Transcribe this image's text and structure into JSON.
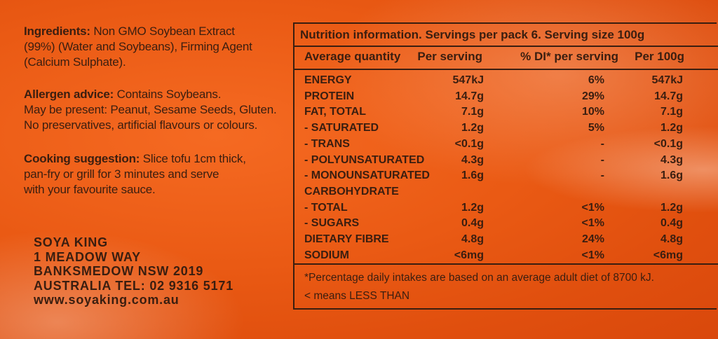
{
  "ingredients": {
    "label": "Ingredients:",
    "lines": [
      "Non GMO Soybean Extract",
      "(99%) (Water and Soybeans), Firming Agent",
      "(Calcium Sulphate)."
    ]
  },
  "allergen": {
    "label": "Allergen advice:",
    "line1": "Contains Soybeans.",
    "line2": "May be present: Peanut, Sesame Seeds, Gluten.",
    "line3": "No preservatives, artificial flavours or colours."
  },
  "cooking": {
    "label": "Cooking suggestion:",
    "line1": "Slice tofu 1cm thick,",
    "line2": "pan-fry or grill for 3 minutes and serve",
    "line3": "with your favourite sauce."
  },
  "address": [
    "SOYA KING",
    "1 MEADOW WAY",
    "BANKSMEDOW NSW 2019",
    "AUSTRALIA TEL: 02 9316 5171",
    "www.soyaking.com.au"
  ],
  "nutrition": {
    "title": "Nutrition information. Servings per pack 6.  Serving size 100g",
    "headers": [
      "Average quantity",
      "Per serving",
      "% DI* per serving",
      "Per 100g"
    ],
    "rows": [
      [
        "ENERGY",
        "547kJ",
        "6%",
        "547kJ"
      ],
      [
        "PROTEIN",
        "14.7g",
        "29%",
        "14.7g"
      ],
      [
        "FAT, TOTAL",
        "7.1g",
        "10%",
        "7.1g"
      ],
      [
        "- SATURATED",
        "1.2g",
        "5%",
        "1.2g"
      ],
      [
        "- TRANS",
        "<0.1g",
        "-",
        "<0.1g"
      ],
      [
        "- POLYUNSATURATED",
        "4.3g",
        "-",
        "4.3g"
      ],
      [
        "- MONOUNSATURATED",
        "1.6g",
        "-",
        "1.6g"
      ],
      [
        "CARBOHYDRATE",
        "",
        "",
        ""
      ],
      [
        "- TOTAL",
        "1.2g",
        "<1%",
        "1.2g"
      ],
      [
        "- SUGARS",
        "0.4g",
        "<1%",
        "0.4g"
      ],
      [
        "DIETARY FIBRE",
        "4.8g",
        "24%",
        "4.8g"
      ],
      [
        "SODIUM",
        "<6mg",
        "<1%",
        "<6mg"
      ]
    ],
    "footnote1": "*Percentage daily intakes are based on an average adult diet of 8700 kJ.",
    "footnote2": "< means LESS THAN"
  }
}
